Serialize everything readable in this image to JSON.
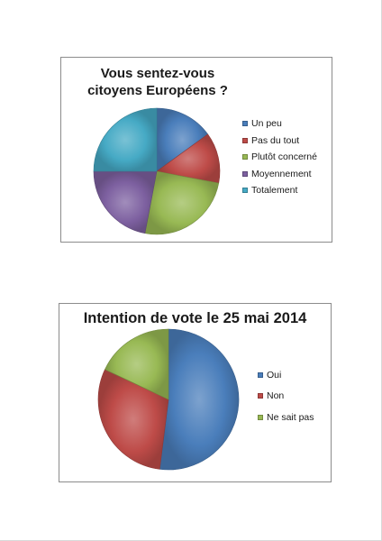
{
  "chart_data": [
    {
      "type": "pie",
      "title": "Vous sentez-vous citoyens Européens ?",
      "categories": [
        "Un peu",
        "Pas du tout",
        "Plutôt concerné",
        "Moyennement",
        "Totalement"
      ],
      "values": [
        15,
        13,
        25,
        22,
        25
      ],
      "colors": [
        "#4a7ebb",
        "#be4b48",
        "#98b954",
        "#7d60a0",
        "#46aac5"
      ],
      "start_angle_deg": 0,
      "direction": "clockwise",
      "legend_position": "right",
      "style": "3d-shaded"
    },
    {
      "type": "pie",
      "title": "Intention de vote le 25 mai 2014",
      "categories": [
        "Oui",
        "Non",
        "Ne sait pas"
      ],
      "values": [
        52,
        30,
        18
      ],
      "colors": [
        "#4a7ebb",
        "#be4b48",
        "#98b954"
      ],
      "start_angle_deg": 0,
      "direction": "clockwise",
      "legend_position": "right",
      "style": "3d-shaded"
    }
  ]
}
